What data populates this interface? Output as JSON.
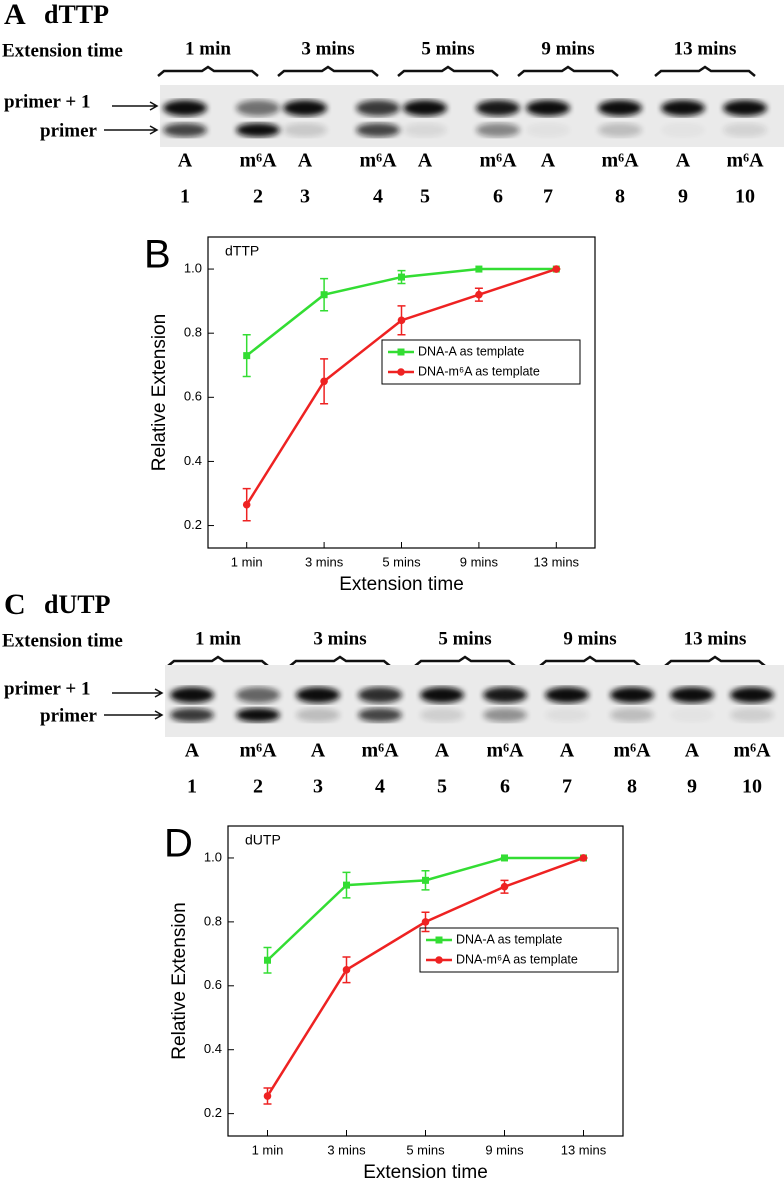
{
  "gels": [
    {
      "panel": "A",
      "nucleotide": "dTTP",
      "time_label": "Extension time",
      "times": [
        "1 min",
        "3 mins",
        "5 mins",
        "9 mins",
        "13 mins"
      ],
      "band_labels": [
        "primer + 1",
        "primer"
      ],
      "lanes": [
        "A",
        "m⁶A",
        "A",
        "m⁶A",
        "A",
        "m⁶A",
        "A",
        "m⁶A",
        "A",
        "m⁶A"
      ],
      "lane_numbers": [
        1,
        2,
        3,
        4,
        5,
        6,
        7,
        8,
        9,
        10
      ]
    },
    {
      "panel": "C",
      "nucleotide": "dUTP",
      "time_label": "Extension time",
      "times": [
        "1 min",
        "3 mins",
        "5 mins",
        "9 mins",
        "13 mins"
      ],
      "band_labels": [
        "primer + 1",
        "primer"
      ],
      "lanes": [
        "A",
        "m⁶A",
        "A",
        "m⁶A",
        "A",
        "m⁶A",
        "A",
        "m⁶A",
        "A",
        "m⁶A"
      ],
      "lane_numbers": [
        1,
        2,
        3,
        4,
        5,
        6,
        7,
        8,
        9,
        10
      ]
    }
  ],
  "chart_data": [
    {
      "type": "line",
      "panel": "B",
      "title": "dTTP",
      "xlabel": "Extension time",
      "ylabel": "Relative Extension",
      "categories": [
        "1 min",
        "3 mins",
        "5 mins",
        "9 mins",
        "13 mins"
      ],
      "ylim": [
        0.13,
        1.1
      ],
      "yticks": [
        0.2,
        0.4,
        0.6,
        0.8,
        {
          "value": 1,
          "label": "1.0"
        }
      ],
      "series": [
        {
          "name": "DNA-A as template",
          "color": "#33dd33",
          "marker": "square",
          "values": [
            0.73,
            0.92,
            0.975,
            1,
            1
          ],
          "errors": [
            0.065,
            0.05,
            0.02,
            0,
            0
          ]
        },
        {
          "name": "DNA-m⁶A as template",
          "color": "#ee2222",
          "marker": "circle",
          "values": [
            0.265,
            0.65,
            0.84,
            0.92,
            1
          ],
          "errors": [
            0.05,
            0.07,
            0.045,
            0.02,
            0
          ]
        }
      ]
    },
    {
      "type": "line",
      "panel": "D",
      "title": "dUTP",
      "xlabel": "Extension time",
      "ylabel": "Relative Extension",
      "categories": [
        "1 min",
        "3 mins",
        "5 mins",
        "9 mins",
        "13 mins"
      ],
      "ylim": [
        0.13,
        1.1
      ],
      "yticks": [
        0.2,
        0.4,
        0.6,
        0.8,
        {
          "value": 1,
          "label": "1.0"
        }
      ],
      "series": [
        {
          "name": "DNA-A as template",
          "color": "#33dd33",
          "marker": "square",
          "values": [
            0.68,
            0.915,
            0.93,
            1,
            1
          ],
          "errors": [
            0.04,
            0.04,
            0.03,
            0,
            0
          ]
        },
        {
          "name": "DNA-m⁶A as template",
          "color": "#ee2222",
          "marker": "circle",
          "values": [
            0.255,
            0.65,
            0.8,
            0.91,
            1
          ],
          "errors": [
            0.025,
            0.04,
            0.03,
            0.02,
            0
          ]
        }
      ]
    }
  ]
}
